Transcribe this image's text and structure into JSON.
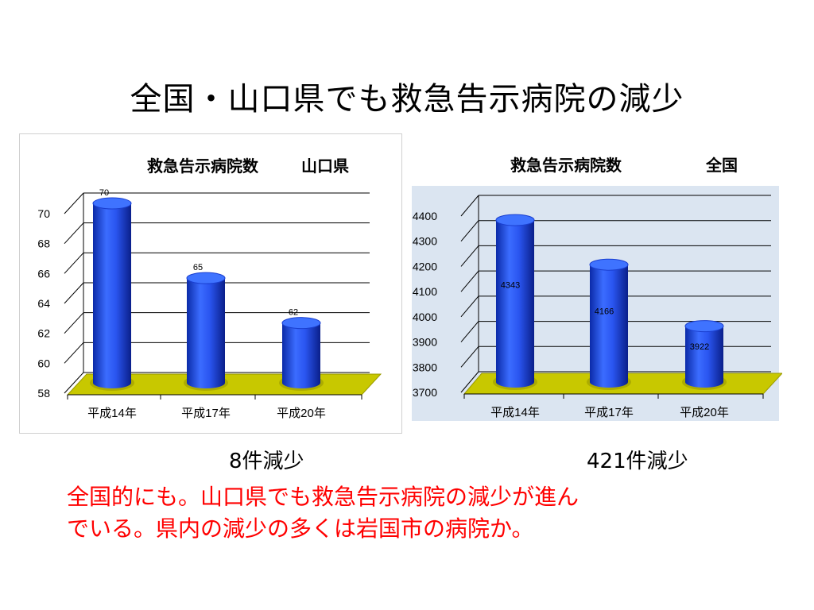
{
  "slide": {
    "title": "全国・山口県でも救急告示病院の減少",
    "caption_left": "8件減少",
    "caption_right": "421件減少",
    "note_line1": "全国的にも。山口県でも救急告示病院の減少が進ん",
    "note_line2": "でいる。県内の減少の多くは岩国市の病院か。"
  },
  "colors": {
    "bar": "#2255ee",
    "bar_top": "#3f73ff",
    "floor": "#c8c800",
    "plot_bg_right": "#dbe5f1"
  },
  "chart_data": [
    {
      "type": "bar",
      "title": "救急告示病院数",
      "subtitle": "山口県",
      "categories": [
        "平成14年",
        "平成17年",
        "平成20年"
      ],
      "values": [
        70,
        65,
        62
      ],
      "data_labels": [
        "70",
        "65",
        "62"
      ],
      "yticks": [
        "58",
        "60",
        "62",
        "64",
        "66",
        "68",
        "70"
      ],
      "ylim": [
        58,
        70
      ],
      "grid": true,
      "style": "3d-cylinder"
    },
    {
      "type": "bar",
      "title": "救急告示病院数",
      "subtitle": "全国",
      "categories": [
        "平成14年",
        "平成17年",
        "平成20年"
      ],
      "values": [
        4343,
        4166,
        3922
      ],
      "data_labels": [
        "4343",
        "4166",
        "3922"
      ],
      "yticks": [
        "3700",
        "3800",
        "3900",
        "4000",
        "4100",
        "4200",
        "4300",
        "4400"
      ],
      "ylim": [
        3700,
        4400
      ],
      "grid": true,
      "style": "3d-cylinder"
    }
  ]
}
